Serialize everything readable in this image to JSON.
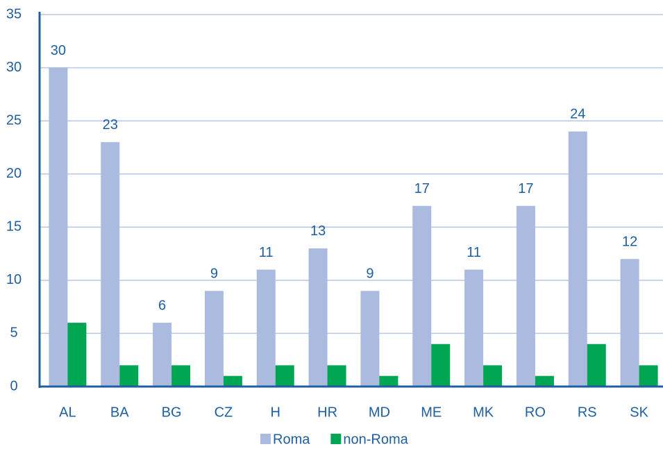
{
  "chart_data": {
    "type": "bar",
    "categories": [
      "AL",
      "BA",
      "BG",
      "CZ",
      "H",
      "HR",
      "MD",
      "ME",
      "MK",
      "RO",
      "RS",
      "SK"
    ],
    "series": [
      {
        "name": "Roma",
        "color": "#abbbdf",
        "values": [
          30,
          23,
          6,
          9,
          11,
          13,
          9,
          17,
          11,
          17,
          24,
          12
        ]
      },
      {
        "name": "non-Roma",
        "color": "#00a651",
        "values": [
          6,
          2,
          2,
          1,
          2,
          2,
          1,
          4,
          2,
          1,
          4,
          2
        ]
      }
    ],
    "ylim": [
      0,
      35
    ],
    "yticks": [
      0,
      5,
      10,
      15,
      20,
      25,
      30,
      35
    ],
    "grid": true,
    "legend": "bottom"
  }
}
